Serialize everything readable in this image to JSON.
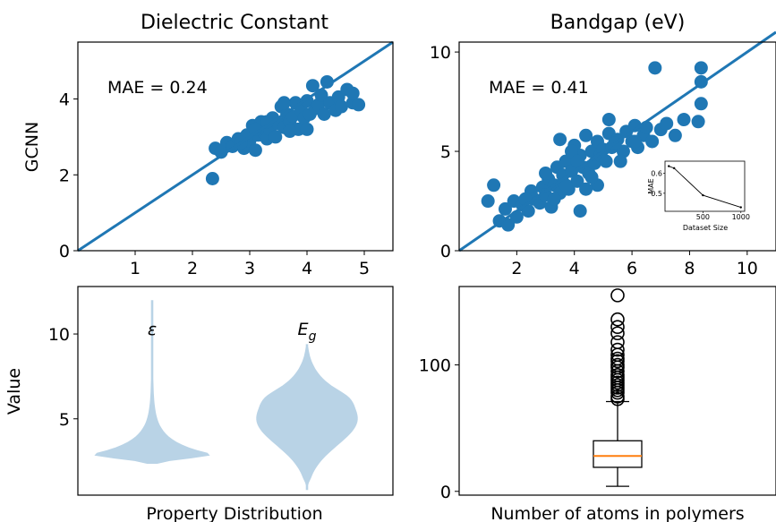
{
  "colors": {
    "marker": "#1f77b4",
    "violin": "#b9d3e6",
    "median": "#ff7f0e"
  },
  "chart_data": [
    {
      "type": "scatter",
      "title": "Dielectric Constant",
      "ylabel": "GCNN",
      "xlim": [
        0,
        5.5
      ],
      "ylim": [
        0,
        5.5
      ],
      "xticks": [
        "1",
        "2",
        "3",
        "4",
        "5"
      ],
      "yticks": [
        "0",
        "2",
        "4"
      ],
      "annotation": "MAE = 0.24",
      "fit_line": [
        [
          0,
          0
        ],
        [
          5.5,
          5.5
        ]
      ],
      "points": [
        [
          2.35,
          1.9
        ],
        [
          2.4,
          2.7
        ],
        [
          2.5,
          2.6
        ],
        [
          2.6,
          2.85
        ],
        [
          2.7,
          2.75
        ],
        [
          2.8,
          2.95
        ],
        [
          2.9,
          2.7
        ],
        [
          3.0,
          2.9
        ],
        [
          3.05,
          3.3
        ],
        [
          3.1,
          2.65
        ],
        [
          3.15,
          3.05
        ],
        [
          3.2,
          3.4
        ],
        [
          3.25,
          3.1
        ],
        [
          3.3,
          2.95
        ],
        [
          3.35,
          3.2
        ],
        [
          3.4,
          3.5
        ],
        [
          3.45,
          3.0
        ],
        [
          3.5,
          3.35
        ],
        [
          3.55,
          3.8
        ],
        [
          3.6,
          3.25
        ],
        [
          3.65,
          3.6
        ],
        [
          3.7,
          3.4
        ],
        [
          3.75,
          3.55
        ],
        [
          3.8,
          3.9
        ],
        [
          3.85,
          3.2
        ],
        [
          3.9,
          3.7
        ],
        [
          3.95,
          3.5
        ],
        [
          4.0,
          3.95
        ],
        [
          4.05,
          3.6
        ],
        [
          4.1,
          4.35
        ],
        [
          4.15,
          3.75
        ],
        [
          4.2,
          3.85
        ],
        [
          4.25,
          4.1
        ],
        [
          4.3,
          3.6
        ],
        [
          4.35,
          4.45
        ],
        [
          4.4,
          3.9
        ],
        [
          4.5,
          3.7
        ],
        [
          4.55,
          4.05
        ],
        [
          4.6,
          3.8
        ],
        [
          4.7,
          4.25
        ],
        [
          4.8,
          3.9
        ],
        [
          4.9,
          3.85
        ],
        [
          4.8,
          4.15
        ],
        [
          3.3,
          3.4
        ],
        [
          3.6,
          3.9
        ],
        [
          2.95,
          3.05
        ],
        [
          3.1,
          3.2
        ],
        [
          3.7,
          3.15
        ],
        [
          4.0,
          3.2
        ],
        [
          2.85,
          2.85
        ]
      ]
    },
    {
      "type": "scatter",
      "title": "Bandgap (eV)",
      "xlim": [
        0,
        11
      ],
      "ylim": [
        0,
        10.5
      ],
      "xticks": [
        "2",
        "4",
        "6",
        "8",
        "10"
      ],
      "yticks": [
        "0",
        "5",
        "10"
      ],
      "annotation": "MAE = 0.41",
      "fit_line": [
        [
          0,
          0
        ],
        [
          11,
          11
        ]
      ],
      "points": [
        [
          1.0,
          2.5
        ],
        [
          1.2,
          3.3
        ],
        [
          1.4,
          1.5
        ],
        [
          1.6,
          2.1
        ],
        [
          1.7,
          1.3
        ],
        [
          1.9,
          2.5
        ],
        [
          2.0,
          1.7
        ],
        [
          2.2,
          2.3
        ],
        [
          2.4,
          2.0
        ],
        [
          2.5,
          3.0
        ],
        [
          2.6,
          2.6
        ],
        [
          2.8,
          2.4
        ],
        [
          2.9,
          3.2
        ],
        [
          3.0,
          2.8
        ],
        [
          3.1,
          3.6
        ],
        [
          3.2,
          2.2
        ],
        [
          3.3,
          3.3
        ],
        [
          3.4,
          4.2
        ],
        [
          3.5,
          2.9
        ],
        [
          3.5,
          5.6
        ],
        [
          3.6,
          3.8
        ],
        [
          3.7,
          4.5
        ],
        [
          3.8,
          3.1
        ],
        [
          3.9,
          4.0
        ],
        [
          4.0,
          5.3
        ],
        [
          4.1,
          3.5
        ],
        [
          4.2,
          4.8
        ],
        [
          4.2,
          2.0
        ],
        [
          4.3,
          4.2
        ],
        [
          4.4,
          5.8
        ],
        [
          4.5,
          3.9
        ],
        [
          4.6,
          5.0
        ],
        [
          4.7,
          4.4
        ],
        [
          4.8,
          5.5
        ],
        [
          4.9,
          4.8
        ],
        [
          5.0,
          5.1
        ],
        [
          5.1,
          4.5
        ],
        [
          5.2,
          5.9
        ],
        [
          5.2,
          6.6
        ],
        [
          5.3,
          5.2
        ],
        [
          5.5,
          5.6
        ],
        [
          5.7,
          5.0
        ],
        [
          5.8,
          6.0
        ],
        [
          6.0,
          5.5
        ],
        [
          6.1,
          6.3
        ],
        [
          6.2,
          5.2
        ],
        [
          6.4,
          5.8
        ],
        [
          6.5,
          6.2
        ],
        [
          6.7,
          5.5
        ],
        [
          6.8,
          9.2
        ],
        [
          7.0,
          6.1
        ],
        [
          7.2,
          6.4
        ],
        [
          7.5,
          5.8
        ],
        [
          7.8,
          6.6
        ],
        [
          8.3,
          6.5
        ],
        [
          8.4,
          7.4
        ],
        [
          8.4,
          8.5
        ],
        [
          8.4,
          9.2
        ],
        [
          4.8,
          3.3
        ],
        [
          3.0,
          3.9
        ],
        [
          4.4,
          3.1
        ],
        [
          5.6,
          4.5
        ],
        [
          3.3,
          2.6
        ],
        [
          6.1,
          5.5
        ],
        [
          3.9,
          5.0
        ],
        [
          4.6,
          3.7
        ],
        [
          3.7,
          3.3
        ],
        [
          5.4,
          5.4
        ],
        [
          2.3,
          2.6
        ],
        [
          4.1,
          4.5
        ]
      ]
    },
    {
      "type": "violin",
      "xlabel": "Property Distribution",
      "ylabel": "Value",
      "ylim": [
        0.5,
        12.8
      ],
      "yticks": [
        "5",
        "10"
      ],
      "violins": [
        {
          "label_main": "ε",
          "label_sub": "",
          "min": 2.35,
          "max": 12.0,
          "peak": 2.9
        },
        {
          "label_main": "E",
          "label_sub": "g",
          "min": 0.8,
          "max": 9.4,
          "peak": 5.0
        }
      ]
    },
    {
      "type": "box",
      "xlabel": "Number of atoms in polymers",
      "ylim": [
        -3,
        162
      ],
      "yticks": [
        "0",
        "100"
      ],
      "whisker_low": 4,
      "q1": 19,
      "median": 28,
      "q3": 40,
      "whisker_high": 71,
      "outliers": [
        73,
        75,
        78,
        80,
        82,
        84,
        86,
        88,
        90,
        92,
        95,
        98,
        100,
        103,
        105,
        108,
        112,
        118,
        125,
        130,
        136,
        155
      ]
    },
    {
      "type": "line",
      "xlabel": "Dataset Size",
      "ylabel": "MAE",
      "xlim": [
        0,
        1050
      ],
      "ylim": [
        0.41,
        0.66
      ],
      "xticks": [
        "500",
        "1000"
      ],
      "yticks": [
        "0.5",
        "0.6"
      ],
      "x": [
        50,
        120,
        500,
        1000
      ],
      "y": [
        0.635,
        0.625,
        0.49,
        0.43
      ]
    }
  ]
}
